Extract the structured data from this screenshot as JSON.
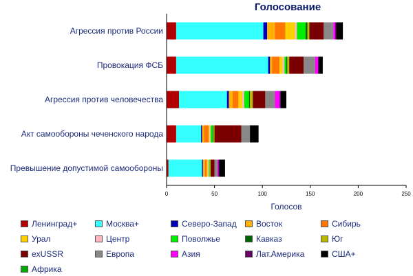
{
  "chart_data": {
    "type": "bar",
    "orientation": "horizontal",
    "stacked": true,
    "title": "Голосование",
    "xlabel": "Голосов",
    "ylabel": "",
    "xlim": [
      0,
      250
    ],
    "xticks": [
      0,
      50,
      100,
      150,
      200,
      250
    ],
    "grid": false,
    "legend_position": "bottom",
    "categories": [
      "Агрессия против России",
      "Провокация ФСБ",
      "Агрессия против человечества",
      "Акт самообороны чеченского народа",
      "Превышение допустимой самообороны"
    ],
    "series": [
      {
        "name": "Ленинград+",
        "color": "#b00000",
        "values": [
          10,
          10,
          13,
          10,
          2
        ]
      },
      {
        "name": "Москва+",
        "color": "#33ffff",
        "values": [
          91,
          96,
          50,
          26,
          35
        ]
      },
      {
        "name": "Северо-Запад",
        "color": "#0000bb",
        "values": [
          4,
          2,
          2,
          1,
          1
        ]
      },
      {
        "name": "Восток",
        "color": "#ffb000",
        "values": [
          8,
          2,
          4,
          2,
          2
        ]
      },
      {
        "name": "Сибирь",
        "color": "#ff7700",
        "values": [
          11,
          8,
          6,
          5,
          2
        ]
      },
      {
        "name": "Урал",
        "color": "#ffd000",
        "values": [
          10,
          3,
          4,
          1,
          1
        ]
      },
      {
        "name": "Центр",
        "color": "#ffb6c1",
        "values": [
          2,
          2,
          2,
          1,
          1
        ]
      },
      {
        "name": "Поволжье",
        "color": "#00ee00",
        "values": [
          9,
          2,
          5,
          2,
          1
        ]
      },
      {
        "name": "Кавказ",
        "color": "#006400",
        "values": [
          2,
          1,
          1,
          1,
          0
        ]
      },
      {
        "name": "Юг",
        "color": "#b8b800",
        "values": [
          2,
          2,
          3,
          1,
          1
        ]
      },
      {
        "name": "exUSSR",
        "color": "#7a0000",
        "values": [
          15,
          15,
          13,
          28,
          4
        ]
      },
      {
        "name": "Европа",
        "color": "#888888",
        "values": [
          10,
          12,
          10,
          9,
          3
        ]
      },
      {
        "name": "Азия",
        "color": "#ff00ff",
        "values": [
          2,
          3,
          5,
          0,
          1
        ]
      },
      {
        "name": "Лат.Америка",
        "color": "#660066",
        "values": [
          1,
          1,
          1,
          0,
          1
        ]
      },
      {
        "name": "США+",
        "color": "#000000",
        "values": [
          7,
          4,
          6,
          9,
          6
        ]
      },
      {
        "name": "Африка",
        "color": "#00aa00",
        "values": [
          0,
          0,
          0,
          0,
          0
        ]
      }
    ]
  }
}
